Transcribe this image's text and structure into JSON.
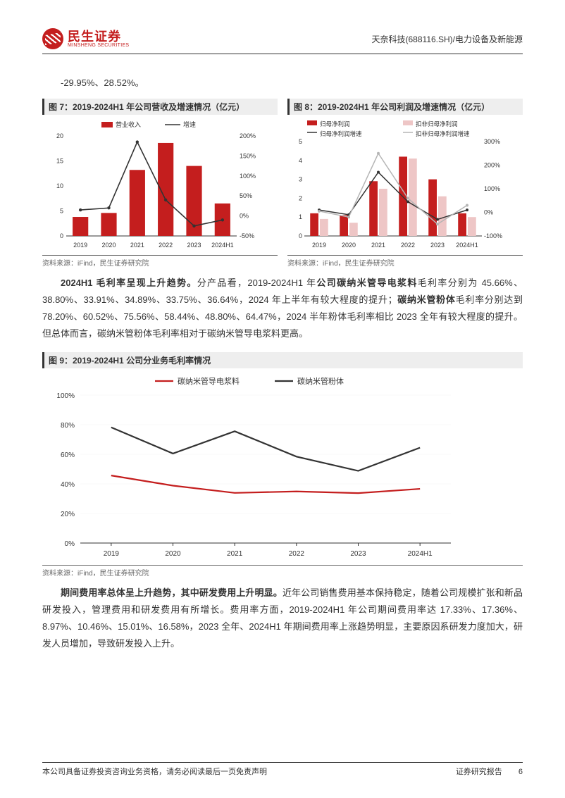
{
  "header": {
    "logo_cn": "民生证券",
    "logo_en": "MINSHENG SECURITIES",
    "right": "天奈科技(688116.SH)/电力设备及新能源"
  },
  "intro_line": "-29.95%、28.52%。",
  "chart7": {
    "title": "图 7：2019-2024H1 年公司营收及增速情况（亿元）",
    "type": "bar+line",
    "categories": [
      "2019",
      "2020",
      "2021",
      "2022",
      "2023",
      "2024H1"
    ],
    "bars": {
      "label": "营业收入",
      "color": "#c41e1e",
      "values": [
        3.8,
        4.6,
        13.2,
        18.6,
        14.0,
        6.5
      ]
    },
    "line": {
      "label": "增速",
      "color": "#333333",
      "values": [
        15,
        20,
        185,
        40,
        -25,
        -10
      ]
    },
    "y_left": {
      "min": 0,
      "max": 20,
      "step": 5
    },
    "y_right": {
      "min": -50,
      "max": 200,
      "step": 50,
      "suffix": "%"
    },
    "bar_width": 0.55,
    "label_fontsize": 9,
    "source": "资料来源：iFind，民生证券研究院"
  },
  "chart8": {
    "title": "图 8：2019-2024H1 年公司利润及增速情况（亿元）",
    "type": "bar2+line2",
    "categories": [
      "2019",
      "2020",
      "2021",
      "2022",
      "2023",
      "2024H1"
    ],
    "bars": [
      {
        "label": "归母净利润",
        "color": "#c41e1e",
        "values": [
          1.2,
          1.1,
          2.9,
          4.2,
          3.0,
          1.2
        ]
      },
      {
        "label": "扣非归母净利润",
        "color": "#eec6c6",
        "values": [
          0.9,
          0.7,
          2.5,
          4.1,
          2.1,
          1.0
        ]
      }
    ],
    "lines": [
      {
        "label": "归母净利润增速",
        "color": "#333333",
        "values": [
          10,
          -10,
          170,
          45,
          -30,
          10
        ]
      },
      {
        "label": "扣非归母净利润增速",
        "color": "#b5b5b5",
        "values": [
          5,
          -20,
          250,
          60,
          -50,
          30
        ]
      }
    ],
    "y_left": {
      "min": 0,
      "max": 5,
      "step": 1
    },
    "y_right": {
      "min": -100,
      "max": 300,
      "step": 100,
      "suffix": "%"
    },
    "bar_width": 0.28,
    "label_fontsize": 9,
    "source": "资料来源：iFind，民生证券研究院"
  },
  "para1_parts": [
    {
      "b": true,
      "t": "2024H1 毛利率呈现上升趋势。"
    },
    {
      "b": false,
      "t": "分产品看，2019-2024H1 年"
    },
    {
      "b": true,
      "t": "公司碳纳米管导电浆料"
    },
    {
      "b": false,
      "t": "毛利率分别为 45.66%、38.80%、33.91%、34.89%、33.75%、36.64%，2024 年上半年有较大程度的提升；"
    },
    {
      "b": true,
      "t": "碳纳米管粉体"
    },
    {
      "b": false,
      "t": "毛利率分别达到 78.20%、60.52%、75.56%、58.44%、48.80%、64.47%，2024 半年粉体毛利率相比 2023 全年有较大程度的提升。但总体而言，碳纳米管粉体毛利率相对于碳纳米管导电浆料更高。"
    }
  ],
  "chart9": {
    "title": "图 9：2019-2024H1 公司分业务毛利率情况",
    "type": "line2",
    "categories": [
      "2019",
      "2020",
      "2021",
      "2022",
      "2023",
      "2024H1"
    ],
    "lines": [
      {
        "label": "碳纳米管导电浆料",
        "color": "#c41e1e",
        "values": [
          45.66,
          38.8,
          33.91,
          34.89,
          33.75,
          36.64
        ]
      },
      {
        "label": "碳纳米管粉体",
        "color": "#333333",
        "values": [
          78.2,
          60.52,
          75.56,
          58.44,
          48.8,
          64.47
        ]
      }
    ],
    "y": {
      "min": 0,
      "max": 100,
      "step": 20,
      "suffix": "%"
    },
    "line_width": 2.2,
    "label_fontsize": 10,
    "source": "资料来源：iFind，民生证券研究院"
  },
  "para2_parts": [
    {
      "b": true,
      "t": "期间费用率总体呈上升趋势，其中研发费用上升明显。"
    },
    {
      "b": false,
      "t": "近年公司销售费用基本保持稳定，随着公司规模扩张和新品研发投入，管理费用和研发费用有所增长。费用率方面，2019-2024H1 年公司期间费用率达 17.33%、17.36%、8.97%、10.46%、15.01%、16.58%，2023 全年、2024H1 年期间费用率上涨趋势明显，主要原因系研发力度加大，研发人员增加，导致研发投入上升。"
    }
  ],
  "footer": {
    "left": "本公司具备证券投资咨询业务资格，请务必阅读最后一页免责声明",
    "right": "证券研究报告",
    "page": "6"
  },
  "colors": {
    "accent": "#c41e1e",
    "grid": "#e0e0e0",
    "axis": "#333333",
    "bg": "#ffffff"
  }
}
